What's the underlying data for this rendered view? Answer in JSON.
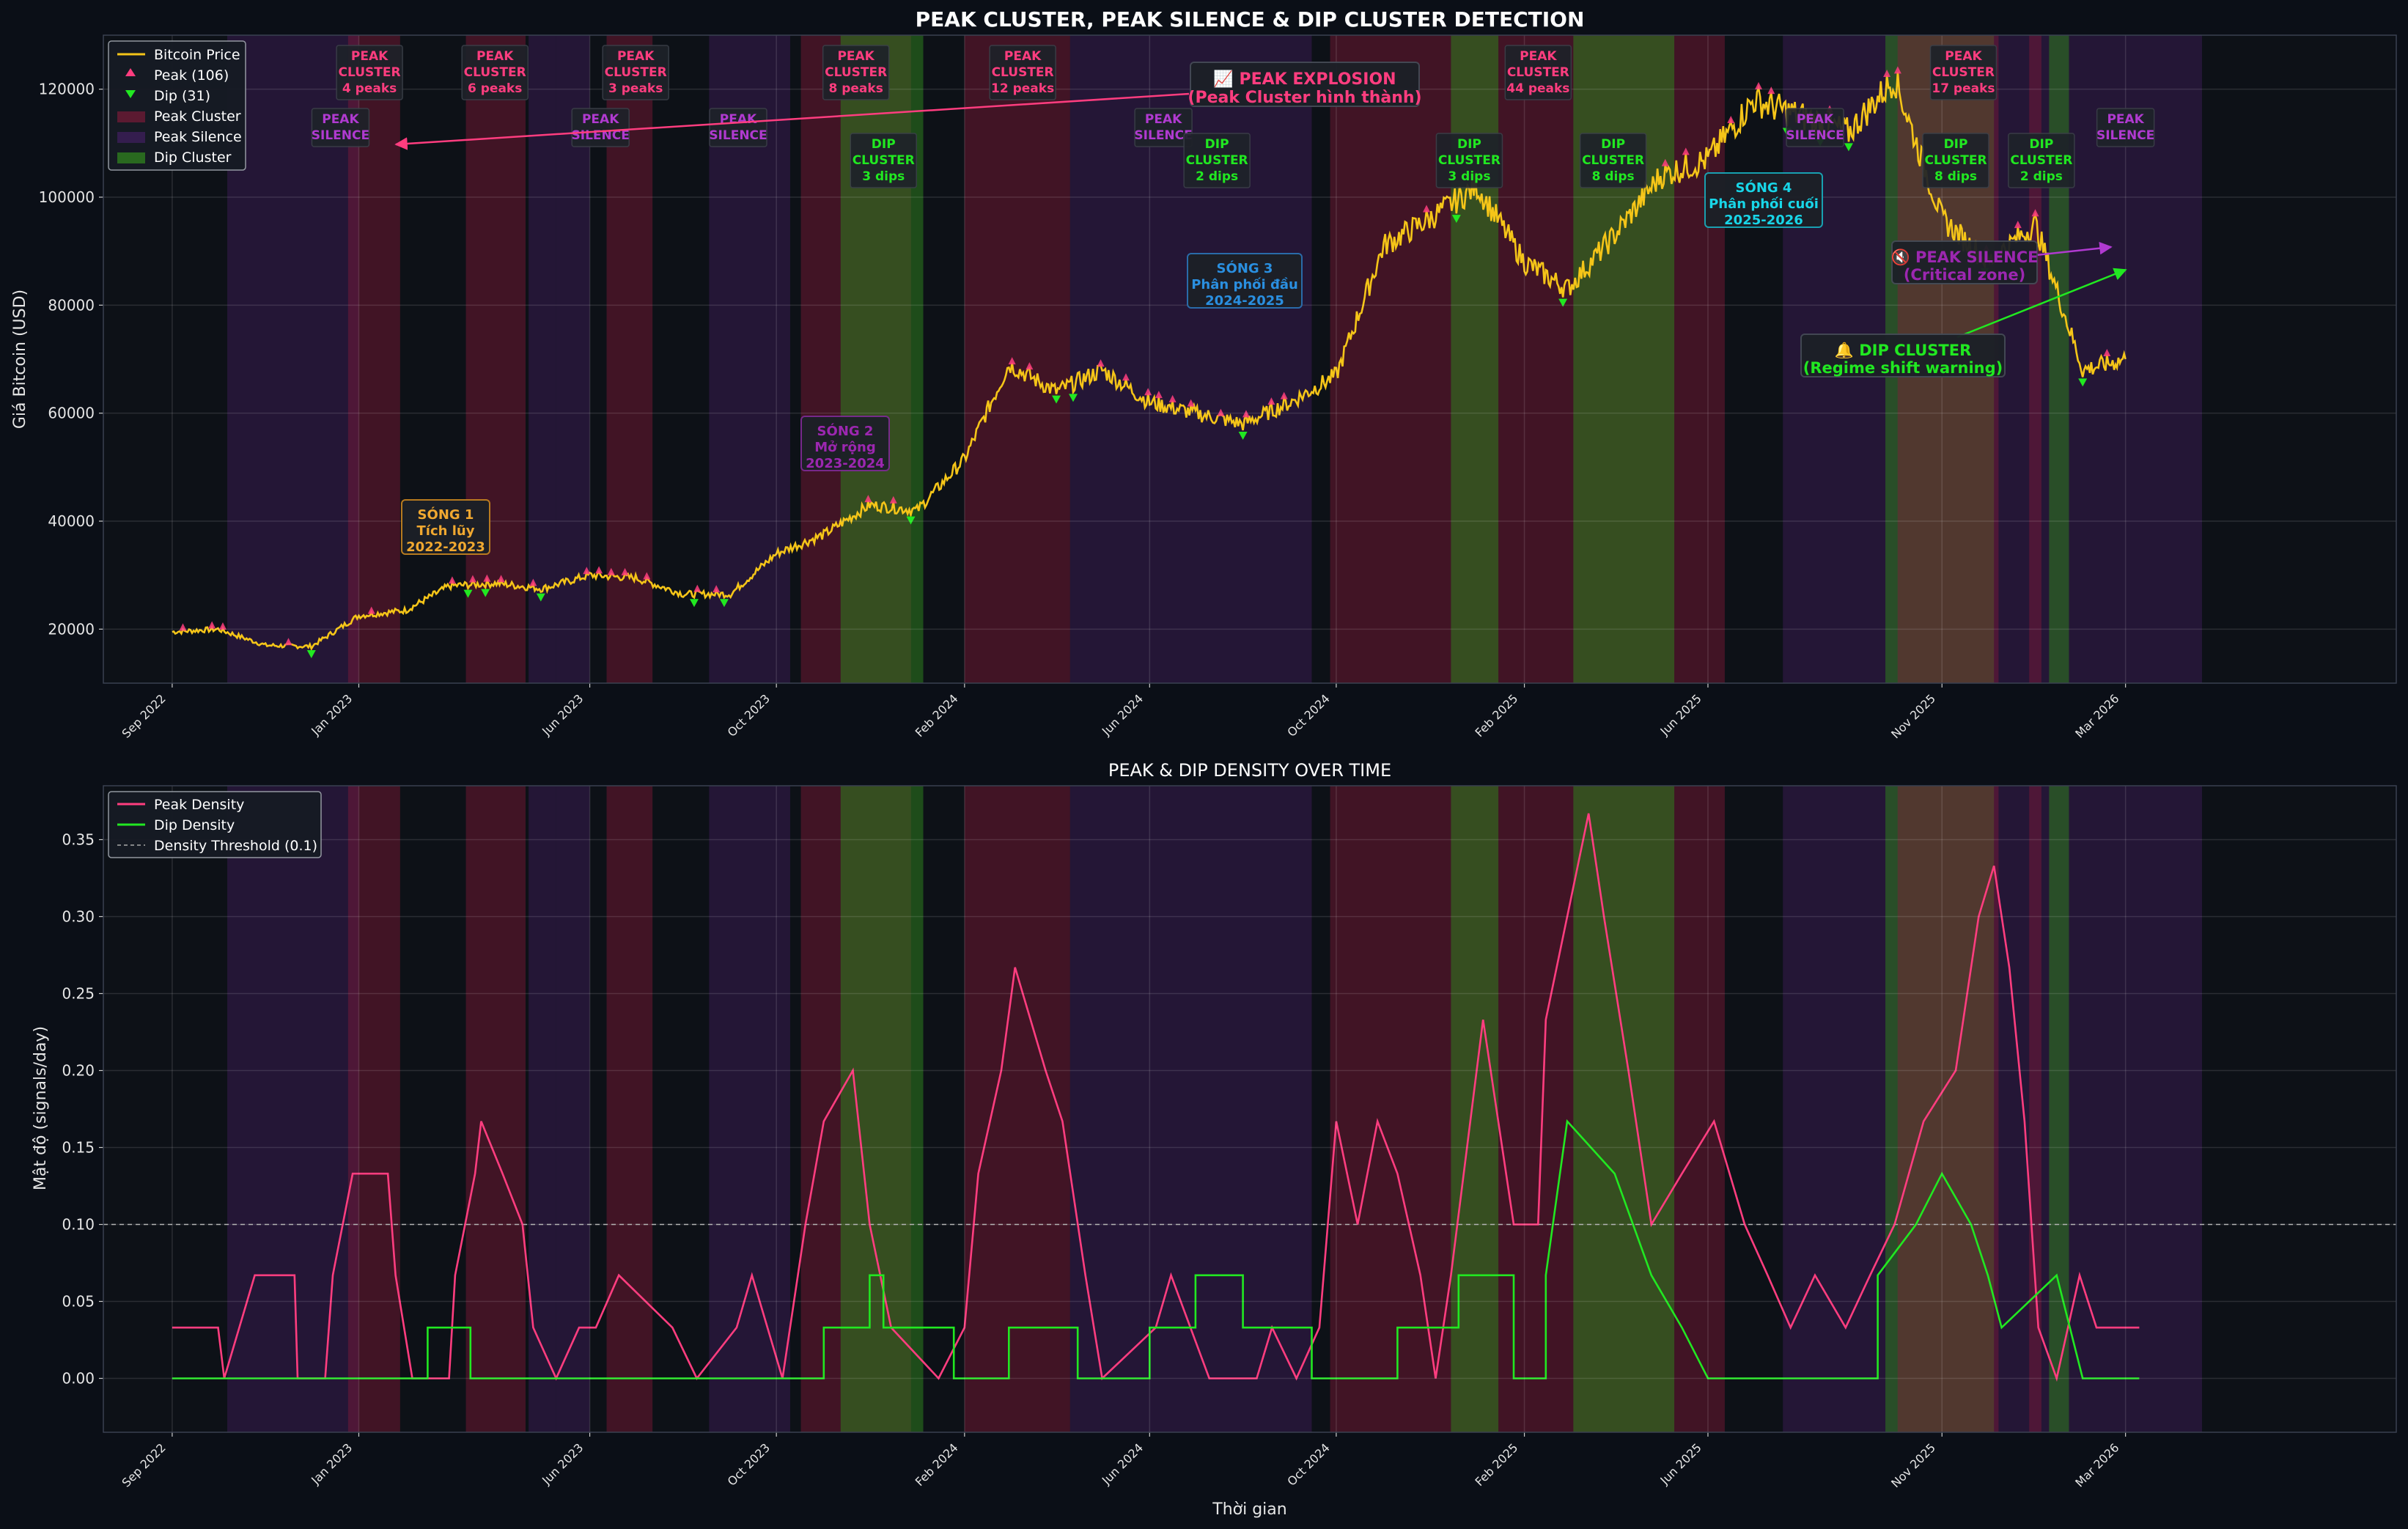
{
  "chart_data": [
    {
      "type": "line",
      "title": "PEAK CLUSTER, PEAK SILENCE & DIP CLUSTER DETECTION",
      "xlabel": "",
      "ylabel": "Giá Bitcoin (USD)",
      "ylim": [
        10000,
        130000
      ],
      "yticks": [
        20000,
        40000,
        60000,
        80000,
        100000,
        120000
      ],
      "ytick_labels": [
        "20000",
        "40000",
        "60000",
        "80000",
        "100000",
        "120000"
      ],
      "xticks": [
        "Sep 2022",
        "Jan 2023",
        "Jun 2023",
        "Oct 2023",
        "Feb 2024",
        "Jun 2024",
        "Oct 2024",
        "Feb 2025",
        "Jun 2025",
        "Nov 2025",
        "Mar 2026"
      ],
      "legend_position": "top-left",
      "legend": [
        "Bitcoin Price",
        "Peak (106)",
        "Dip (31)",
        "Peak Cluster",
        "Peak Silence",
        "Dip Cluster"
      ],
      "price_series": {
        "name": "Bitcoin Price",
        "x": [
          "2022-09",
          "2022-10",
          "2022-11",
          "2022-12",
          "2023-01",
          "2023-02",
          "2023-03",
          "2023-04",
          "2023-05",
          "2023-06",
          "2023-07",
          "2023-08",
          "2023-09",
          "2023-10",
          "2023-11",
          "2023-12",
          "2024-01",
          "2024-02",
          "2024-03",
          "2024-04",
          "2024-05",
          "2024-06",
          "2024-07",
          "2024-08",
          "2024-09",
          "2024-10",
          "2024-11",
          "2024-12",
          "2025-01",
          "2025-02",
          "2025-03",
          "2025-04",
          "2025-05",
          "2025-06",
          "2025-07",
          "2025-08",
          "2025-09",
          "2025-10",
          "2025-11",
          "2025-12",
          "2026-01",
          "2026-02",
          "2026-03"
        ],
        "values": [
          19500,
          20000,
          17000,
          16800,
          22500,
          23500,
          28000,
          28500,
          27500,
          30000,
          29500,
          26500,
          26500,
          34000,
          37500,
          43000,
          42000,
          51500,
          69000,
          64000,
          68000,
          62000,
          60000,
          58000,
          62000,
          67000,
          91000,
          96000,
          102000,
          88000,
          83000,
          93000,
          104000,
          107000,
          118000,
          115000,
          112000,
          122000,
          96000,
          88000,
          95000,
          68000,
          70000
        ]
      },
      "peak_count": 106,
      "dip_count": 31,
      "regions": [
        {
          "kind": "silence",
          "start": "2022-10-07",
          "end": "2023-01-01"
        },
        {
          "kind": "cluster",
          "start": "2022-12-25",
          "end": "2023-01-28"
        },
        {
          "kind": "cluster",
          "start": "2023-03-12",
          "end": "2023-04-20"
        },
        {
          "kind": "silence",
          "start": "2023-04-22",
          "end": "2023-05-10"
        },
        {
          "kind": "silence",
          "start": "2023-05-10",
          "end": "2023-06-01"
        },
        {
          "kind": "cluster",
          "start": "2023-06-12",
          "end": "2023-07-12"
        },
        {
          "kind": "silence",
          "start": "2023-08-18",
          "end": "2023-10-10"
        },
        {
          "kind": "cluster",
          "start": "2023-10-17",
          "end": "2023-12-28"
        },
        {
          "kind": "dip",
          "start": "2023-11-12",
          "end": "2024-01-05"
        },
        {
          "kind": "cluster",
          "start": "2024-02-01",
          "end": "2024-04-10"
        },
        {
          "kind": "silence",
          "start": "2024-04-10",
          "end": "2024-09-15"
        },
        {
          "kind": "cluster",
          "start": "2024-09-27",
          "end": "2025-06-12"
        },
        {
          "kind": "dip",
          "start": "2024-12-15",
          "end": "2025-01-15"
        },
        {
          "kind": "dip",
          "start": "2025-03-05",
          "end": "2025-05-10"
        },
        {
          "kind": "silence",
          "start": "2025-07-20",
          "end": "2026-04-20"
        },
        {
          "kind": "dip",
          "start": "2025-09-25",
          "end": "2025-12-05"
        },
        {
          "kind": "cluster",
          "start": "2025-10-03",
          "end": "2025-12-08"
        },
        {
          "kind": "cluster",
          "start": "2025-12-28",
          "end": "2026-01-05"
        },
        {
          "kind": "dip",
          "start": "2026-01-10",
          "end": "2026-01-23"
        }
      ],
      "box_labels": [
        {
          "date": "2023-01-08",
          "text": "PEAK\nCLUSTER\n4 peaks",
          "kind": "peak"
        },
        {
          "date": "2023-03-31",
          "text": "PEAK\nCLUSTER\n6 peaks",
          "kind": "peak"
        },
        {
          "date": "2023-07-01",
          "text": "PEAK\nCLUSTER\n3 peaks",
          "kind": "peak"
        },
        {
          "date": "2023-11-22",
          "text": "PEAK\nCLUSTER\n8 peaks",
          "kind": "peak"
        },
        {
          "date": "2024-03-10",
          "text": "PEAK\nCLUSTER\n12 peaks",
          "kind": "peak"
        },
        {
          "date": "2025-02-10",
          "text": "PEAK\nCLUSTER\n44 peaks",
          "kind": "peak"
        },
        {
          "date": "2025-11-15",
          "text": "PEAK\nCLUSTER\n17 peaks",
          "kind": "peak"
        },
        {
          "date": "2022-12-20",
          "text": "PEAK\nSILENCE",
          "kind": "silence"
        },
        {
          "date": "2023-06-08",
          "text": "PEAK\nSILENCE",
          "kind": "silence"
        },
        {
          "date": "2023-09-06",
          "text": "PEAK\nSILENCE",
          "kind": "silence"
        },
        {
          "date": "2024-06-10",
          "text": "PEAK\nSILENCE",
          "kind": "silence"
        },
        {
          "date": "2025-08-10",
          "text": "PEAK\nSILENCE",
          "kind": "silence"
        },
        {
          "date": "2026-03-01",
          "text": "PEAK\nSILENCE",
          "kind": "silence"
        },
        {
          "date": "2023-12-10",
          "text": "DIP\nCLUSTER\n3 dips",
          "kind": "dip"
        },
        {
          "date": "2024-07-15",
          "text": "DIP\nCLUSTER\n2 dips",
          "kind": "dip"
        },
        {
          "date": "2024-12-27",
          "text": "DIP\nCLUSTER\n3 dips",
          "kind": "dip"
        },
        {
          "date": "2025-03-31",
          "text": "DIP\nCLUSTER\n8 dips",
          "kind": "dip"
        },
        {
          "date": "2025-11-10",
          "text": "DIP\nCLUSTER\n8 dips",
          "kind": "dip"
        },
        {
          "date": "2026-01-05",
          "text": "DIP\nCLUSTER\n2 dips",
          "kind": "dip"
        }
      ],
      "annotations": [
        {
          "text": "📈 PEAK EXPLOSION\n(Peak Cluster hình thành)",
          "color": "#ff3d7f"
        },
        {
          "text": "🔇 PEAK SILENCE\n(Critical zone)",
          "color": "#9c27b0"
        },
        {
          "text": "🔔 DIP CLUSTER\n(Regime shift warning)",
          "color": "#21e821"
        },
        {
          "text": "SÓNG 1\nTích lũy\n2022-2023",
          "color": "#f0a830"
        },
        {
          "text": "SÓNG 2\nMở rộng\n2023-2024",
          "color": "#9c27b0"
        },
        {
          "text": "SÓNG 3\nPhân phối đầu\n2024-2025",
          "color": "#2a8fe0"
        },
        {
          "text": "SÓNG 4\nPhân phối cuối\n2025-2026",
          "color": "#18d6e8"
        }
      ]
    },
    {
      "type": "line",
      "title": "PEAK & DIP DENSITY OVER TIME",
      "xlabel": "Thời gian",
      "ylabel": "Mật độ (signals/day)",
      "ylim": [
        -0.035,
        0.385
      ],
      "yticks": [
        0,
        0.05,
        0.1,
        0.15,
        0.2,
        0.25,
        0.3,
        0.35
      ],
      "ytick_labels": [
        "0.00",
        "0.05",
        "0.10",
        "0.15",
        "0.20",
        "0.25",
        "0.30",
        "0.35"
      ],
      "threshold": 0.1,
      "legend_position": "top-left",
      "legend": [
        "Peak Density",
        "Dip Density",
        "Density Threshold (0.1)"
      ],
      "series": [
        {
          "name": "Peak Density",
          "points": [
            [
              "2022-09-01",
              0.033
            ],
            [
              "2022-10-01",
              0.033
            ],
            [
              "2022-10-05",
              0.0
            ],
            [
              "2022-10-25",
              0.067
            ],
            [
              "2022-11-20",
              0.067
            ],
            [
              "2022-11-22",
              0.0
            ],
            [
              "2022-12-10",
              0.0
            ],
            [
              "2022-12-15",
              0.067
            ],
            [
              "2022-12-28",
              0.133
            ],
            [
              "2023-01-20",
              0.133
            ],
            [
              "2023-01-25",
              0.067
            ],
            [
              "2023-02-05",
              0.0
            ],
            [
              "2023-03-01",
              0.0
            ],
            [
              "2023-03-05",
              0.067
            ],
            [
              "2023-03-18",
              0.133
            ],
            [
              "2023-03-22",
              0.167
            ],
            [
              "2023-04-05",
              0.133
            ],
            [
              "2023-04-18",
              0.1
            ],
            [
              "2023-04-25",
              0.033
            ],
            [
              "2023-05-10",
              0.0
            ],
            [
              "2023-05-25",
              0.033
            ],
            [
              "2023-06-05",
              0.033
            ],
            [
              "2023-06-20",
              0.067
            ],
            [
              "2023-07-25",
              0.033
            ],
            [
              "2023-08-10",
              0.0
            ],
            [
              "2023-09-05",
              0.033
            ],
            [
              "2023-09-15",
              0.067
            ],
            [
              "2023-10-05",
              0.0
            ],
            [
              "2023-10-20",
              0.1
            ],
            [
              "2023-11-01",
              0.167
            ],
            [
              "2023-11-20",
              0.2
            ],
            [
              "2023-12-01",
              0.1
            ],
            [
              "2023-12-15",
              0.033
            ],
            [
              "2024-01-15",
              0.0
            ],
            [
              "2024-02-01",
              0.033
            ],
            [
              "2024-02-10",
              0.133
            ],
            [
              "2024-02-25",
              0.2
            ],
            [
              "2024-03-05",
              0.267
            ],
            [
              "2024-03-25",
              0.2
            ],
            [
              "2024-04-05",
              0.167
            ],
            [
              "2024-04-20",
              0.067
            ],
            [
              "2024-05-01",
              0.0
            ],
            [
              "2024-06-05",
              0.033
            ],
            [
              "2024-06-15",
              0.067
            ],
            [
              "2024-07-10",
              0.0
            ],
            [
              "2024-08-10",
              0.0
            ],
            [
              "2024-08-20",
              0.033
            ],
            [
              "2024-09-05",
              0.0
            ],
            [
              "2024-09-20",
              0.033
            ],
            [
              "2024-10-01",
              0.167
            ],
            [
              "2024-10-15",
              0.1
            ],
            [
              "2024-10-28",
              0.167
            ],
            [
              "2024-11-10",
              0.133
            ],
            [
              "2024-11-25",
              0.067
            ],
            [
              "2024-12-05",
              0.0
            ],
            [
              "2024-12-15",
              0.067
            ],
            [
              "2025-01-05",
              0.233
            ],
            [
              "2025-01-25",
              0.1
            ],
            [
              "2025-02-10",
              0.1
            ],
            [
              "2025-02-15",
              0.233
            ],
            [
              "2025-03-01",
              0.3
            ],
            [
              "2025-03-15",
              0.367
            ],
            [
              "2025-03-25",
              0.3
            ],
            [
              "2025-04-10",
              0.2
            ],
            [
              "2025-04-25",
              0.1
            ],
            [
              "2025-05-15",
              0.133
            ],
            [
              "2025-06-05",
              0.167
            ],
            [
              "2025-06-25",
              0.1
            ],
            [
              "2025-07-10",
              0.067
            ],
            [
              "2025-07-25",
              0.033
            ],
            [
              "2025-08-10",
              0.067
            ],
            [
              "2025-08-30",
              0.033
            ],
            [
              "2025-09-15",
              0.067
            ],
            [
              "2025-10-01",
              0.1
            ],
            [
              "2025-10-20",
              0.167
            ],
            [
              "2025-11-10",
              0.2
            ],
            [
              "2025-11-25",
              0.3
            ],
            [
              "2025-12-05",
              0.333
            ],
            [
              "2025-12-15",
              0.267
            ],
            [
              "2025-12-25",
              0.167
            ],
            [
              "2026-01-03",
              0.033
            ],
            [
              "2026-01-15",
              0.0
            ],
            [
              "2026-01-30",
              0.067
            ],
            [
              "2026-02-10",
              0.033
            ],
            [
              "2026-03-10",
              0.033
            ]
          ]
        },
        {
          "name": "Dip Density",
          "points": [
            [
              "2022-09-01",
              0.0
            ],
            [
              "2023-02-15",
              0.0
            ],
            [
              "2023-02-15",
              0.033
            ],
            [
              "2023-03-15",
              0.033
            ],
            [
              "2023-03-15",
              0.0
            ],
            [
              "2023-11-01",
              0.0
            ],
            [
              "2023-11-01",
              0.033
            ],
            [
              "2023-12-01",
              0.033
            ],
            [
              "2023-12-01",
              0.067
            ],
            [
              "2023-12-10",
              0.067
            ],
            [
              "2023-12-10",
              0.033
            ],
            [
              "2024-01-25",
              0.033
            ],
            [
              "2024-01-25",
              0.0
            ],
            [
              "2024-03-01",
              0.0
            ],
            [
              "2024-03-01",
              0.033
            ],
            [
              "2024-04-15",
              0.033
            ],
            [
              "2024-04-15",
              0.0
            ],
            [
              "2024-06-01",
              0.0
            ],
            [
              "2024-06-01",
              0.033
            ],
            [
              "2024-07-01",
              0.033
            ],
            [
              "2024-07-01",
              0.067
            ],
            [
              "2024-08-01",
              0.067
            ],
            [
              "2024-08-01",
              0.033
            ],
            [
              "2024-09-15",
              0.033
            ],
            [
              "2024-09-15",
              0.0
            ],
            [
              "2024-11-10",
              0.0
            ],
            [
              "2024-11-10",
              0.033
            ],
            [
              "2024-12-20",
              0.033
            ],
            [
              "2024-12-20",
              0.067
            ],
            [
              "2025-01-25",
              0.067
            ],
            [
              "2025-01-25",
              0.0
            ],
            [
              "2025-02-15",
              0.0
            ],
            [
              "2025-02-15",
              0.067
            ],
            [
              "2025-03-01",
              0.167
            ],
            [
              "2025-04-01",
              0.133
            ],
            [
              "2025-04-25",
              0.067
            ],
            [
              "2025-05-15",
              0.033
            ],
            [
              "2025-06-01",
              0.0
            ],
            [
              "2025-09-20",
              0.0
            ],
            [
              "2025-09-20",
              0.067
            ],
            [
              "2025-10-15",
              0.1
            ],
            [
              "2025-11-01",
              0.133
            ],
            [
              "2025-11-20",
              0.1
            ],
            [
              "2025-12-01",
              0.067
            ],
            [
              "2025-12-10",
              0.033
            ],
            [
              "2026-01-15",
              0.067
            ],
            [
              "2026-02-01",
              0.0
            ],
            [
              "2026-03-10",
              0.0
            ]
          ]
        }
      ]
    }
  ],
  "colors": {
    "background": "#0b0f17",
    "plot_bg": "#0d1117",
    "price": "#f5c518",
    "peak": "#ff3d7f",
    "dip": "#21e821",
    "peak_cluster": "#8b1a3a",
    "peak_silence": "#4a1f6a",
    "dip_cluster": "#2e7d1e",
    "text": "#e6e6e6",
    "grid": "#2a2f3a"
  }
}
